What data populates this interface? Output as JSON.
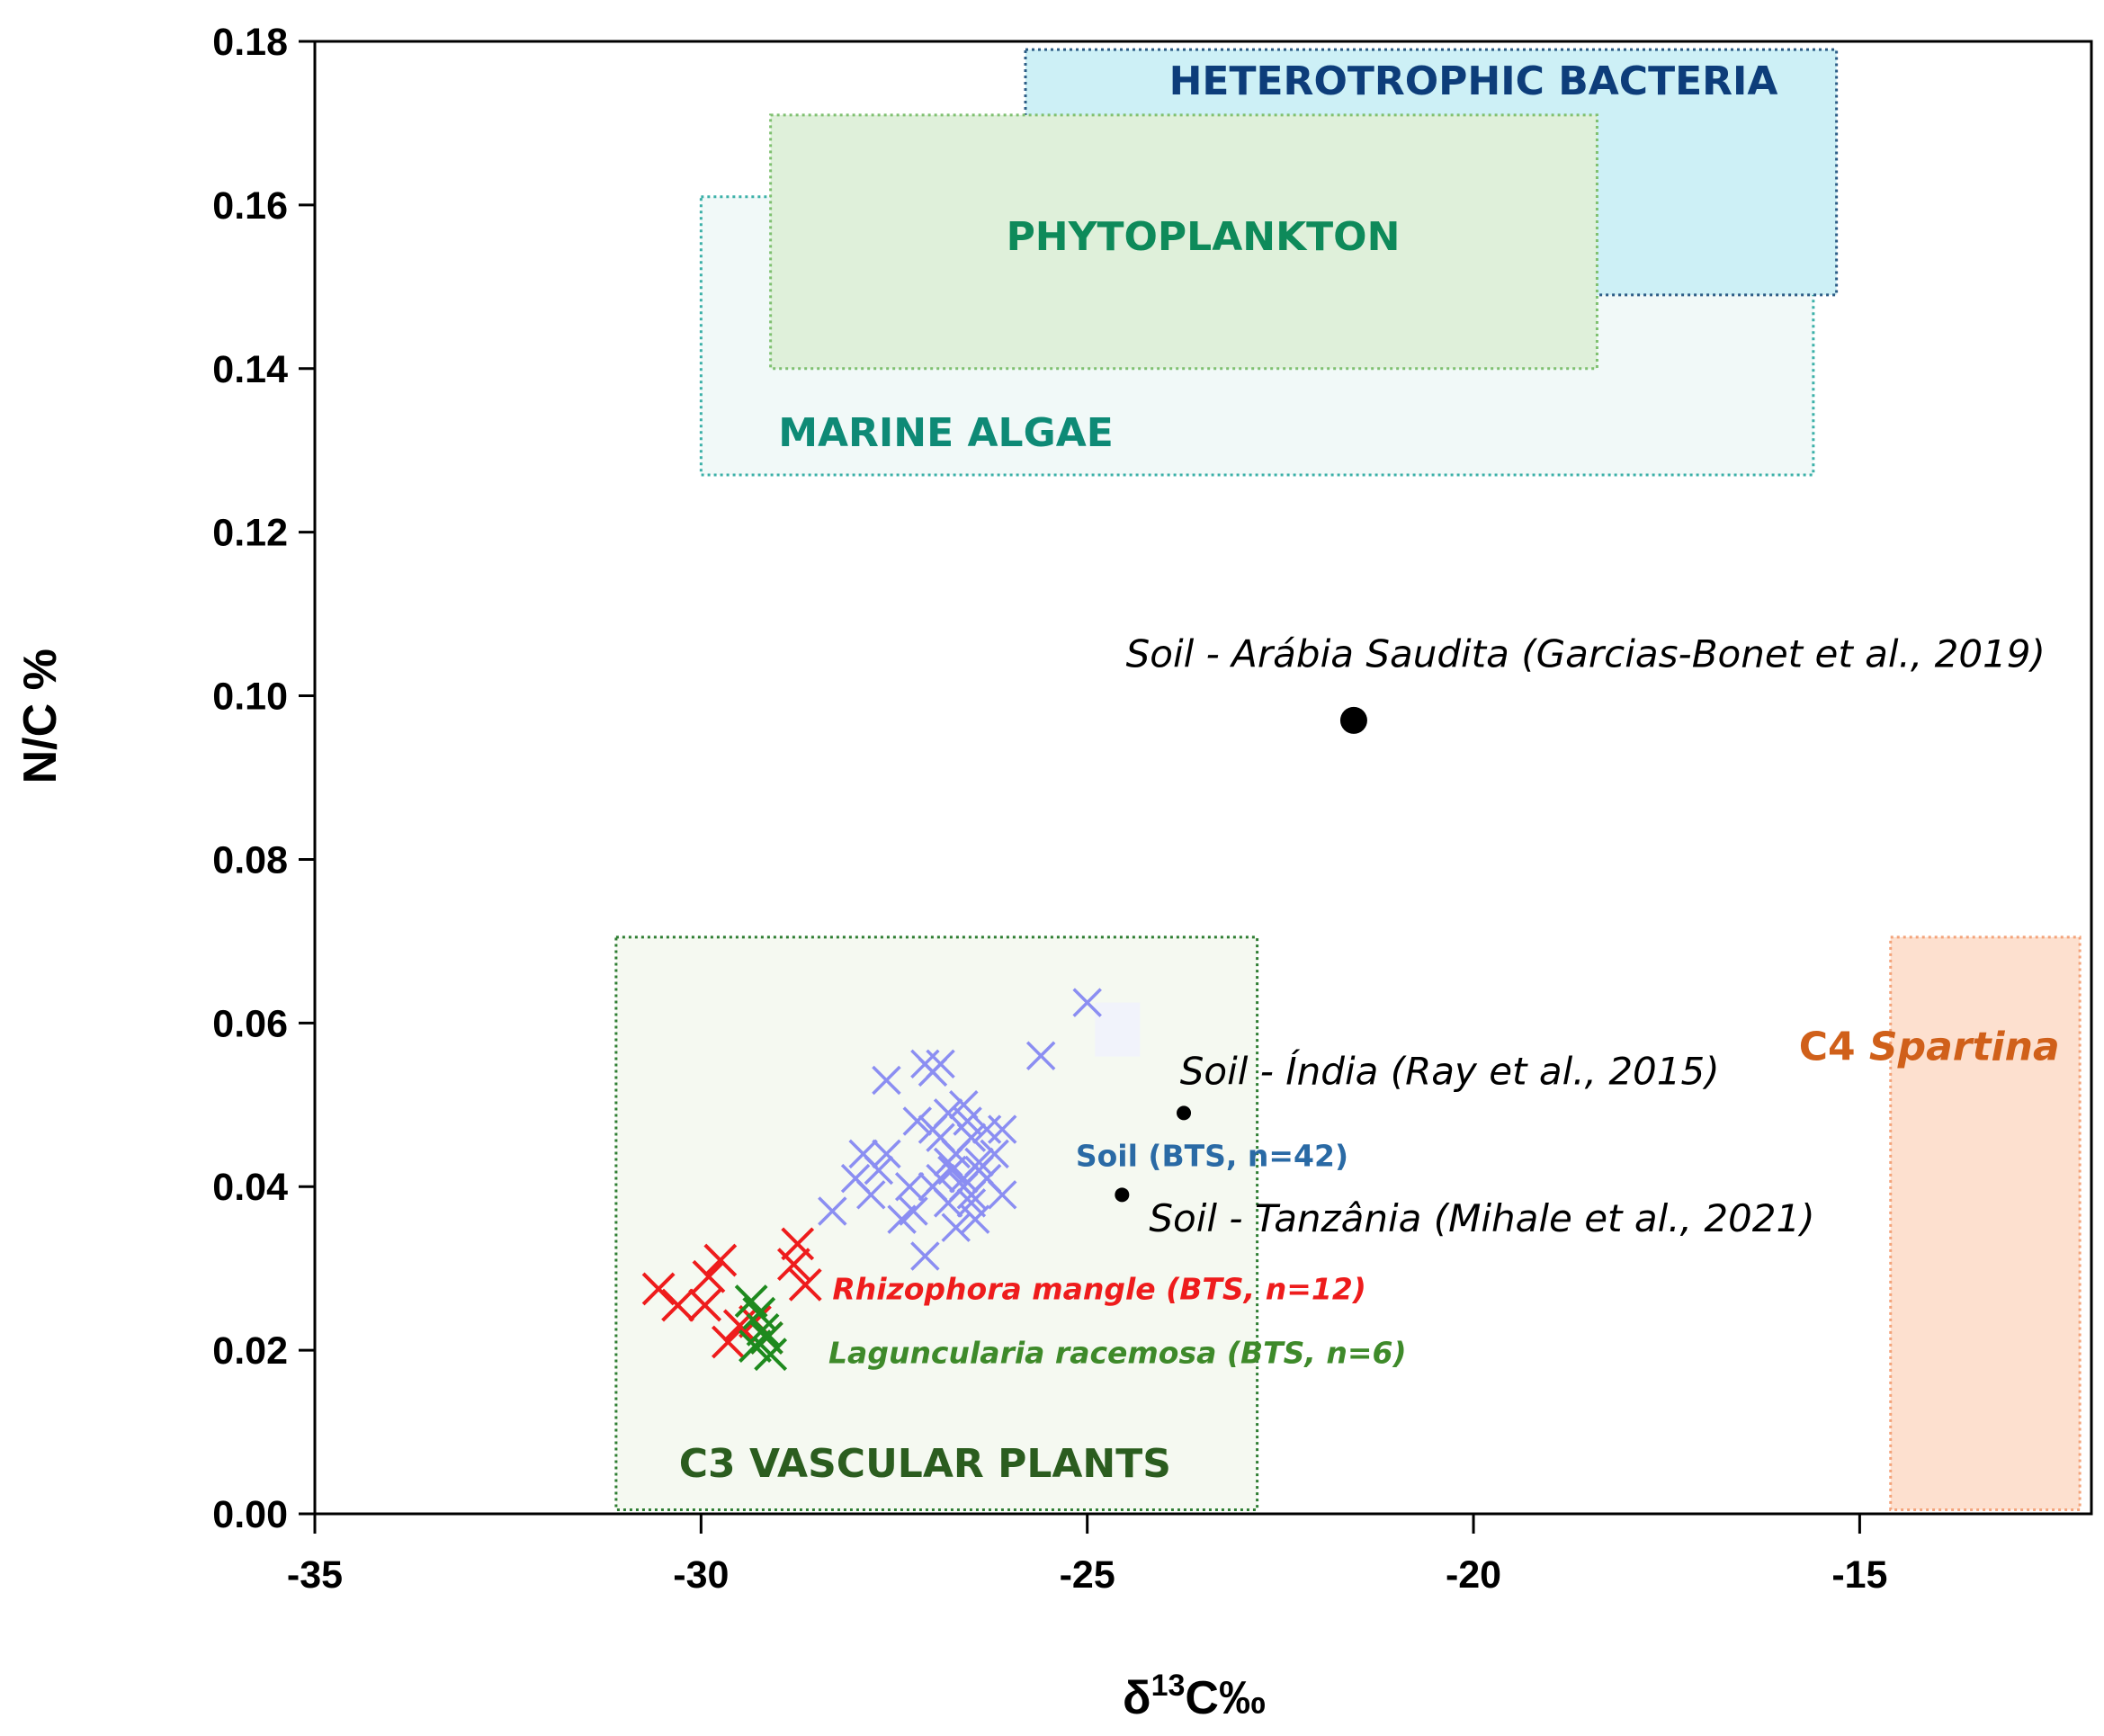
{
  "chart_data": {
    "type": "scatter",
    "xlabel": "δ13C‰",
    "xlabel_parts": {
      "main": "δ",
      "sup": "13",
      "rest": "C‰"
    },
    "ylabel": "N/C %",
    "xlim": [
      -35,
      -12
    ],
    "ylim": [
      0,
      0.18
    ],
    "xticks": [
      -35,
      -30,
      -25,
      -20,
      -15
    ],
    "xtick_labels": [
      "-35",
      "-30",
      "-25",
      "-20",
      "-15"
    ],
    "yticks": [
      0,
      0.02,
      0.04,
      0.06,
      0.08,
      0.1,
      0.12,
      0.14,
      0.16,
      0.18
    ],
    "ytick_labels": [
      "0.00",
      "0.02",
      "0.04",
      "0.06",
      "0.08",
      "0.10",
      "0.12",
      "0.14",
      "0.16",
      "0.18"
    ],
    "regions": [
      {
        "name": "marine-algae",
        "label": "MARINE ALGAE",
        "x": [
          -30.0,
          -15.6
        ],
        "y": [
          0.127,
          0.161
        ],
        "fill": "#f1f9f8",
        "stroke": "#3cb0a8",
        "text_color": "#0e8a76",
        "label_at": [
          -29.0,
          0.1305
        ],
        "label_anchor": "start"
      },
      {
        "name": "heterotrophic-bacteria",
        "label": "HETEROTROPHIC BACTERIA",
        "x": [
          -25.8,
          -15.3
        ],
        "y": [
          0.149,
          0.179
        ],
        "fill": "#cdf0f6",
        "stroke": "#2d5d86",
        "text_color": "#0d3d7a",
        "label_at": [
          -20.0,
          0.1735
        ],
        "label_anchor": "middle"
      },
      {
        "name": "phytoplankton",
        "label": "PHYTOPLANKTON",
        "x": [
          -29.1,
          -18.4
        ],
        "y": [
          0.14,
          0.171
        ],
        "fill": "#dff0da",
        "stroke": "#7fc070",
        "text_color": "#0e8a5a",
        "label_at": [
          -23.5,
          0.1545
        ],
        "label_anchor": "middle"
      },
      {
        "name": "c3-vascular-plants",
        "label": "C3 VASCULAR PLANTS",
        "x": [
          -31.1,
          -22.8
        ],
        "y": [
          0.0005,
          0.0705
        ],
        "fill": "#f5f9f1",
        "stroke": "#2e7d32",
        "text_color": "#2b5d1f",
        "label_at": [
          -27.1,
          0.0045
        ],
        "label_anchor": "middle"
      },
      {
        "name": "c4-spartina",
        "label": "C4 Spartina",
        "x": [
          -14.6,
          -12.15
        ],
        "y": [
          0.0005,
          0.0705
        ],
        "fill": "#fde0cf",
        "stroke": "#f3a37a",
        "text_color": "#d0601a",
        "label_at": [
          -14.1,
          0.0555
        ],
        "label_anchor": "middle"
      }
    ],
    "region_label_parts": {
      "c4_prefix": "C4 ",
      "c4_italic": "Spartina"
    },
    "series": [
      {
        "name": "Soil (BTS, n=42)",
        "marker": "x",
        "color": "#8b8ef2",
        "label_at": [
          -25.15,
          0.0425
        ],
        "label_color": "#2a6aa5",
        "points": [
          [
            -25.0,
            0.0625
          ],
          [
            -25.6,
            0.056
          ],
          [
            -27.6,
            0.053
          ],
          [
            -27.1,
            0.055
          ],
          [
            -26.9,
            0.055
          ],
          [
            -27.0,
            0.054
          ],
          [
            -27.2,
            0.048
          ],
          [
            -26.6,
            0.05
          ],
          [
            -26.3,
            0.047
          ],
          [
            -26.1,
            0.047
          ],
          [
            -26.9,
            0.046
          ],
          [
            -26.5,
            0.046
          ],
          [
            -27.9,
            0.044
          ],
          [
            -27.6,
            0.044
          ],
          [
            -26.8,
            0.043
          ],
          [
            -26.4,
            0.043
          ],
          [
            -28.0,
            0.041
          ],
          [
            -27.7,
            0.042
          ],
          [
            -27.3,
            0.04
          ],
          [
            -27.0,
            0.04
          ],
          [
            -26.6,
            0.04
          ],
          [
            -26.3,
            0.041
          ],
          [
            -26.1,
            0.039
          ],
          [
            -28.3,
            0.037
          ],
          [
            -27.8,
            0.039
          ],
          [
            -27.4,
            0.036
          ],
          [
            -26.8,
            0.038
          ],
          [
            -26.5,
            0.038
          ],
          [
            -26.7,
            0.035
          ],
          [
            -27.1,
            0.0315
          ],
          [
            -26.6,
            0.041
          ],
          [
            -26.4,
            0.042
          ],
          [
            -26.7,
            0.044
          ],
          [
            -27.0,
            0.047
          ],
          [
            -26.8,
            0.049
          ],
          [
            -26.55,
            0.048
          ],
          [
            -26.45,
            0.036
          ],
          [
            -27.25,
            0.037
          ],
          [
            -26.2,
            0.044
          ],
          [
            -26.9,
            0.041
          ],
          [
            -26.5,
            0.039
          ],
          [
            -26.75,
            0.042
          ]
        ]
      },
      {
        "name": "Rhizophora mangle (BTS, n=12)",
        "marker": "x",
        "color": "#ee1c1c",
        "label_at": [
          -28.3,
          0.0262
        ],
        "label_color": "#ee1c1c",
        "points": [
          [
            -30.55,
            0.0275
          ],
          [
            -30.3,
            0.0255
          ],
          [
            -29.9,
            0.029
          ],
          [
            -29.75,
            0.031
          ],
          [
            -29.95,
            0.0255
          ],
          [
            -29.65,
            0.021
          ],
          [
            -29.5,
            0.023
          ],
          [
            -28.75,
            0.033
          ],
          [
            -28.8,
            0.0305
          ],
          [
            -28.65,
            0.028
          ],
          [
            -29.15,
            0.0215
          ],
          [
            -29.3,
            0.0235
          ]
        ]
      },
      {
        "name": "Laguncularia racemosa (BTS, n=6)",
        "marker": "x",
        "color": "#1e8a1e",
        "label_at": [
          -28.35,
          0.0184
        ],
        "label_color": "#3e8a2a",
        "points": [
          [
            -29.35,
            0.026
          ],
          [
            -29.25,
            0.0245
          ],
          [
            -29.2,
            0.0225
          ],
          [
            -29.15,
            0.0215
          ],
          [
            -29.3,
            0.0205
          ],
          [
            -29.1,
            0.0195
          ]
        ]
      }
    ],
    "reference_points": [
      {
        "name": "soil-arabia",
        "label": "Soil - Arábia Saudita (Garcias-Bonet et al., 2019)",
        "x": -21.55,
        "y": 0.097,
        "size": "large",
        "label_at": [
          -24.5,
          0.1035
        ],
        "label_anchor": "start"
      },
      {
        "name": "soil-india",
        "label": "Soil - Índia (Ray et al., 2015)",
        "x": -23.75,
        "y": 0.049,
        "size": "small",
        "label_at": [
          -23.8,
          0.0525
        ],
        "label_anchor": "start"
      },
      {
        "name": "soil-tanzania",
        "label": "Soil - Tanzânia (Mihale et al., 2021)",
        "x": -24.55,
        "y": 0.039,
        "size": "small",
        "label_at": [
          -24.2,
          0.0345
        ],
        "label_anchor": "start"
      }
    ]
  },
  "colors": {
    "axis": "#000000",
    "background": "#ffffff"
  }
}
